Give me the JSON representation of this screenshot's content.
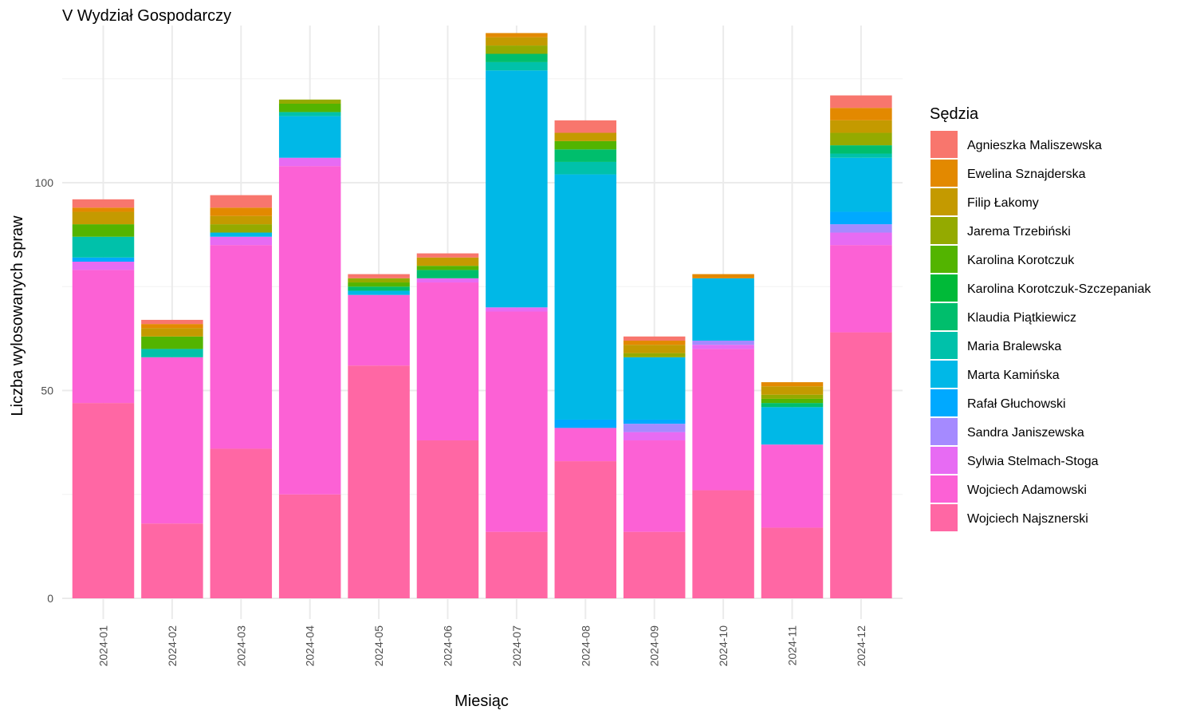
{
  "chart_data": {
    "type": "bar",
    "stacked": true,
    "title": "V Wydział Gospodarczy",
    "xlabel": "Miesiąc",
    "ylabel": "Liczba wylosowanych spraw",
    "ylim": [
      0,
      140
    ],
    "yticks": [
      0,
      50,
      100
    ],
    "grid": true,
    "legend_title": "Sędzia",
    "legend_position": "right",
    "categories": [
      "2024-01",
      "2024-02",
      "2024-03",
      "2024-04",
      "2024-05",
      "2024-06",
      "2024-07",
      "2024-08",
      "2024-09",
      "2024-10",
      "2024-11",
      "2024-12"
    ],
    "series": [
      {
        "name": "Wojciech Najsznerski",
        "color": "#FF67A4",
        "values": [
          47,
          18,
          36,
          25,
          56,
          38,
          16,
          33,
          16,
          26,
          17,
          64
        ]
      },
      {
        "name": "Wojciech Adamowski",
        "color": "#FC61D5",
        "values": [
          32,
          40,
          49,
          79,
          17,
          38,
          53,
          8,
          22,
          34,
          20,
          21
        ]
      },
      {
        "name": "Sylwia Stelmach-Stoga",
        "color": "#E76BF3",
        "values": [
          2,
          0,
          2,
          2,
          0,
          1,
          1,
          0,
          2,
          1,
          0,
          3
        ]
      },
      {
        "name": "Sandra Janiszewska",
        "color": "#A58AFF",
        "values": [
          0,
          0,
          0,
          0,
          0,
          0,
          0,
          0,
          2,
          1,
          0,
          2
        ]
      },
      {
        "name": "Rafał Głuchowski",
        "color": "#00A9FF",
        "values": [
          1,
          0,
          0,
          0,
          0,
          0,
          0,
          2,
          1,
          0,
          0,
          3
        ]
      },
      {
        "name": "Marta Kamińska",
        "color": "#00B8E7",
        "values": [
          0,
          0,
          1,
          10,
          1,
          0,
          57,
          59,
          15,
          15,
          9,
          13
        ]
      },
      {
        "name": "Maria Bralewska",
        "color": "#00C1AA",
        "values": [
          5,
          2,
          0,
          1,
          0,
          0,
          2,
          3,
          0,
          0,
          0,
          1
        ]
      },
      {
        "name": "Klaudia Piątkiewicz",
        "color": "#00BE6C",
        "values": [
          0,
          0,
          0,
          0,
          1,
          2,
          2,
          3,
          0,
          0,
          1,
          2
        ]
      },
      {
        "name": "Karolina Korotczuk-Szczepaniak",
        "color": "#00BA38",
        "values": [
          0,
          0,
          0,
          0,
          0,
          0,
          0,
          0,
          0,
          0,
          0,
          0
        ]
      },
      {
        "name": "Karolina Korotczuk",
        "color": "#53B400",
        "values": [
          3,
          3,
          0,
          2,
          1,
          1,
          0,
          2,
          0,
          0,
          1,
          0
        ]
      },
      {
        "name": "Jarema Trzebiński",
        "color": "#94AA00",
        "values": [
          0,
          0,
          2,
          1,
          1,
          0,
          2,
          0,
          1,
          0,
          1,
          3
        ]
      },
      {
        "name": "Filip Łakomy",
        "color": "#C49A00",
        "values": [
          3,
          2,
          2,
          0,
          0,
          2,
          2,
          2,
          2,
          0,
          2,
          3
        ]
      },
      {
        "name": "Ewelina Sznajderska",
        "color": "#E38900",
        "values": [
          1,
          1,
          2,
          0,
          0,
          0,
          1,
          0,
          1,
          1,
          1,
          3
        ]
      },
      {
        "name": "Agnieszka Maliszewska",
        "color": "#F8766D",
        "values": [
          2,
          1,
          3,
          0,
          1,
          1,
          0,
          3,
          1,
          0,
          0,
          3
        ]
      }
    ]
  }
}
